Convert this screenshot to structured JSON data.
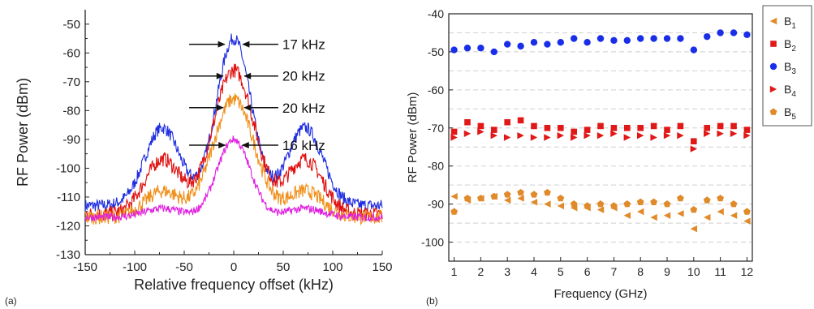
{
  "chart_data": [
    {
      "panel": "(a)",
      "type": "line",
      "xlabel": "Relative frequency offset (kHz)",
      "ylabel": "RF Power (dBm)",
      "xlim": [
        -150,
        150
      ],
      "ylim": [
        -130,
        -45
      ],
      "xticks": [
        -150,
        -100,
        -50,
        0,
        50,
        100,
        150
      ],
      "yticks": [
        -130,
        -120,
        -110,
        -100,
        -90,
        -80,
        -70,
        -60,
        -50
      ],
      "grid": false,
      "series": [
        {
          "color": "#1f2de0",
          "peak": -55,
          "noise_floor": -113,
          "side_lobe_offset": 72,
          "side_lobe_level": -86,
          "side_lobe_width": 18,
          "fwhm": 17,
          "jitter": 2.2
        },
        {
          "color": "#e01010",
          "peak": -66,
          "noise_floor": -116,
          "side_lobe_offset": 72,
          "side_lobe_level": -97,
          "side_lobe_width": 18,
          "fwhm": 20,
          "jitter": 2.6
        },
        {
          "color": "#f0901c",
          "peak": -76,
          "noise_floor": -117,
          "side_lobe_offset": 72,
          "side_lobe_level": -108,
          "side_lobe_width": 18,
          "fwhm": 20,
          "jitter": 2.6
        },
        {
          "color": "#e020e0",
          "peak": -90,
          "noise_floor": -117,
          "side_lobe_offset": 72,
          "side_lobe_level": -114,
          "side_lobe_width": 18,
          "fwhm": 16,
          "jitter": 1.4
        }
      ],
      "annotations": [
        {
          "label": "17 kHz",
          "y": -57,
          "half_width": 8.5,
          "arrow_from": 45
        },
        {
          "label": "20 kHz",
          "y": -68,
          "half_width": 10,
          "arrow_from": 45
        },
        {
          "label": "20 kHz",
          "y": -79,
          "half_width": 10,
          "arrow_from": 45
        },
        {
          "label": "16 kHz",
          "y": -92,
          "half_width": 8,
          "arrow_from": 45
        }
      ]
    },
    {
      "panel": "(b)",
      "type": "scatter",
      "xlabel": "Frequency (GHz)",
      "ylabel": "RF Power (dBm)",
      "xlim": [
        0.8,
        12.2
      ],
      "ylim": [
        -105,
        -40
      ],
      "xticks": [
        1,
        2,
        3,
        4,
        5,
        6,
        7,
        8,
        9,
        10,
        11,
        12
      ],
      "yticks": [
        -100,
        -90,
        -80,
        -70,
        -60,
        -50,
        -40
      ],
      "grid": "dashed horizontal",
      "legend_position": "right",
      "x": [
        1,
        1.5,
        2,
        2.5,
        3,
        3.5,
        4,
        4.5,
        5,
        5.5,
        6,
        6.5,
        7,
        7.5,
        8,
        8.5,
        9,
        9.5,
        10,
        10.5,
        11,
        11.5,
        12
      ],
      "series": [
        {
          "name": "B",
          "sub": "1",
          "marker": "triangle-left",
          "color": "#e08a2a",
          "values": [
            -88,
            -89,
            -88.5,
            -88,
            -89,
            -88.5,
            -89.5,
            -90,
            -90.5,
            -91,
            -91,
            -91.5,
            -91,
            -93,
            -92,
            -93.5,
            -93,
            -92.5,
            -96.5,
            -93.5,
            -92,
            -93,
            -94.5
          ]
        },
        {
          "name": "B",
          "sub": "2",
          "marker": "square",
          "color": "#e01818",
          "values": [
            -71,
            -68.5,
            -69.5,
            -70.5,
            -68.5,
            -68,
            -69.5,
            -70,
            -70,
            -71,
            -70.5,
            -69.5,
            -70,
            -70,
            -70,
            -69.5,
            -70.5,
            -69.5,
            -73.5,
            -70,
            -69.5,
            -69.5,
            -70.5
          ]
        },
        {
          "name": "B",
          "sub": "3",
          "marker": "circle",
          "color": "#1a2ee8",
          "values": [
            -49.5,
            -49,
            -49,
            -50,
            -48,
            -48.5,
            -47.5,
            -48,
            -47.5,
            -46.5,
            -47.5,
            -46.5,
            -47,
            -47,
            -46.5,
            -46.5,
            -46.5,
            -46.5,
            -49.5,
            -46,
            -45,
            -45,
            -45.5
          ]
        },
        {
          "name": "B",
          "sub": "4",
          "marker": "triangle-right",
          "color": "#e01818",
          "values": [
            -72.5,
            -71.5,
            -71,
            -72,
            -72.5,
            -72,
            -72.5,
            -72.5,
            -72,
            -72.5,
            -72,
            -72,
            -71.5,
            -72.5,
            -72,
            -72.5,
            -72,
            -72,
            -75.5,
            -71.5,
            -71.5,
            -71.5,
            -72
          ]
        },
        {
          "name": "B",
          "sub": "5",
          "marker": "pentagon",
          "color": "#e08a2a",
          "values": [
            -92,
            -88.5,
            -88.5,
            -88,
            -87.5,
            -87,
            -87.5,
            -87,
            -88.5,
            -90,
            -90.5,
            -90,
            -90.5,
            -90,
            -89.5,
            -89.5,
            -90,
            -88.5,
            -91.5,
            -89,
            -88.5,
            -90,
            -92
          ]
        }
      ]
    }
  ]
}
